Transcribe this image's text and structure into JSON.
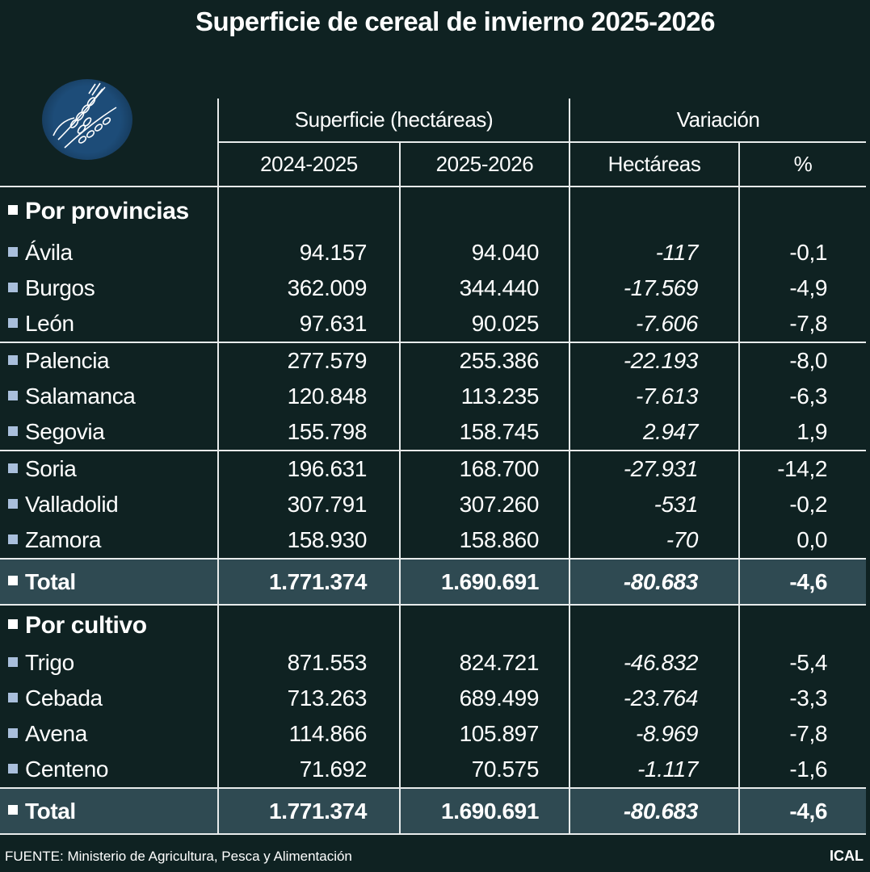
{
  "title": "Superficie de cereal de invierno 2025-2026",
  "logo_icon": "wheat-icon",
  "colors": {
    "background": "#0f2222",
    "total_row": "#2f4a52",
    "bullet": "#a9bfdc",
    "logo": "#1d4c78"
  },
  "chart_data": {
    "type": "table",
    "title": "Superficie de cereal de invierno 2025-2026",
    "group_headers": [
      "Superficie (hectáreas)",
      "Variación"
    ],
    "columns": [
      "2024-2025",
      "2025-2026",
      "Hectáreas",
      "%"
    ],
    "sections": [
      {
        "name": "Por provincias",
        "rows": [
          {
            "label": "Ávila",
            "values": [
              "94.157",
              "94.040",
              "-117",
              "-0,1"
            ]
          },
          {
            "label": "Burgos",
            "values": [
              "362.009",
              "344.440",
              "-17.569",
              "-4,9"
            ]
          },
          {
            "label": "León",
            "values": [
              "97.631",
              "90.025",
              "-7.606",
              "-7,8"
            ]
          },
          {
            "label": "Palencia",
            "values": [
              "277.579",
              "255.386",
              "-22.193",
              "-8,0"
            ]
          },
          {
            "label": "Salamanca",
            "values": [
              "120.848",
              "113.235",
              "-7.613",
              "-6,3"
            ]
          },
          {
            "label": "Segovia",
            "values": [
              "155.798",
              "158.745",
              "2.947",
              "1,9"
            ]
          },
          {
            "label": "Soria",
            "values": [
              "196.631",
              "168.700",
              "-27.931",
              "-14,2"
            ]
          },
          {
            "label": "Valladolid",
            "values": [
              "307.791",
              "307.260",
              "-531",
              "-0,2"
            ]
          },
          {
            "label": "Zamora",
            "values": [
              "158.930",
              "158.860",
              "-70",
              "0,0"
            ]
          }
        ],
        "total": {
          "label": "Total",
          "values": [
            "1.771.374",
            "1.690.691",
            "-80.683",
            "-4,6"
          ]
        }
      },
      {
        "name": "Por cultivo",
        "rows": [
          {
            "label": "Trigo",
            "values": [
              "871.553",
              "824.721",
              "-46.832",
              "-5,4"
            ]
          },
          {
            "label": "Cebada",
            "values": [
              "713.263",
              "689.499",
              "-23.764",
              "-3,3"
            ]
          },
          {
            "label": "Avena",
            "values": [
              "114.866",
              "105.897",
              "-8.969",
              "-7,8"
            ]
          },
          {
            "label": "Centeno",
            "values": [
              "71.692",
              "70.575",
              "-1.117",
              "-1,6"
            ]
          }
        ],
        "total": {
          "label": "Total",
          "values": [
            "1.771.374",
            "1.690.691",
            "-80.683",
            "-4,6"
          ]
        }
      }
    ]
  },
  "footer": {
    "source": "FUENTE: Ministerio de Agricultura, Pesca y Alimentación",
    "brand": "ICAL"
  }
}
